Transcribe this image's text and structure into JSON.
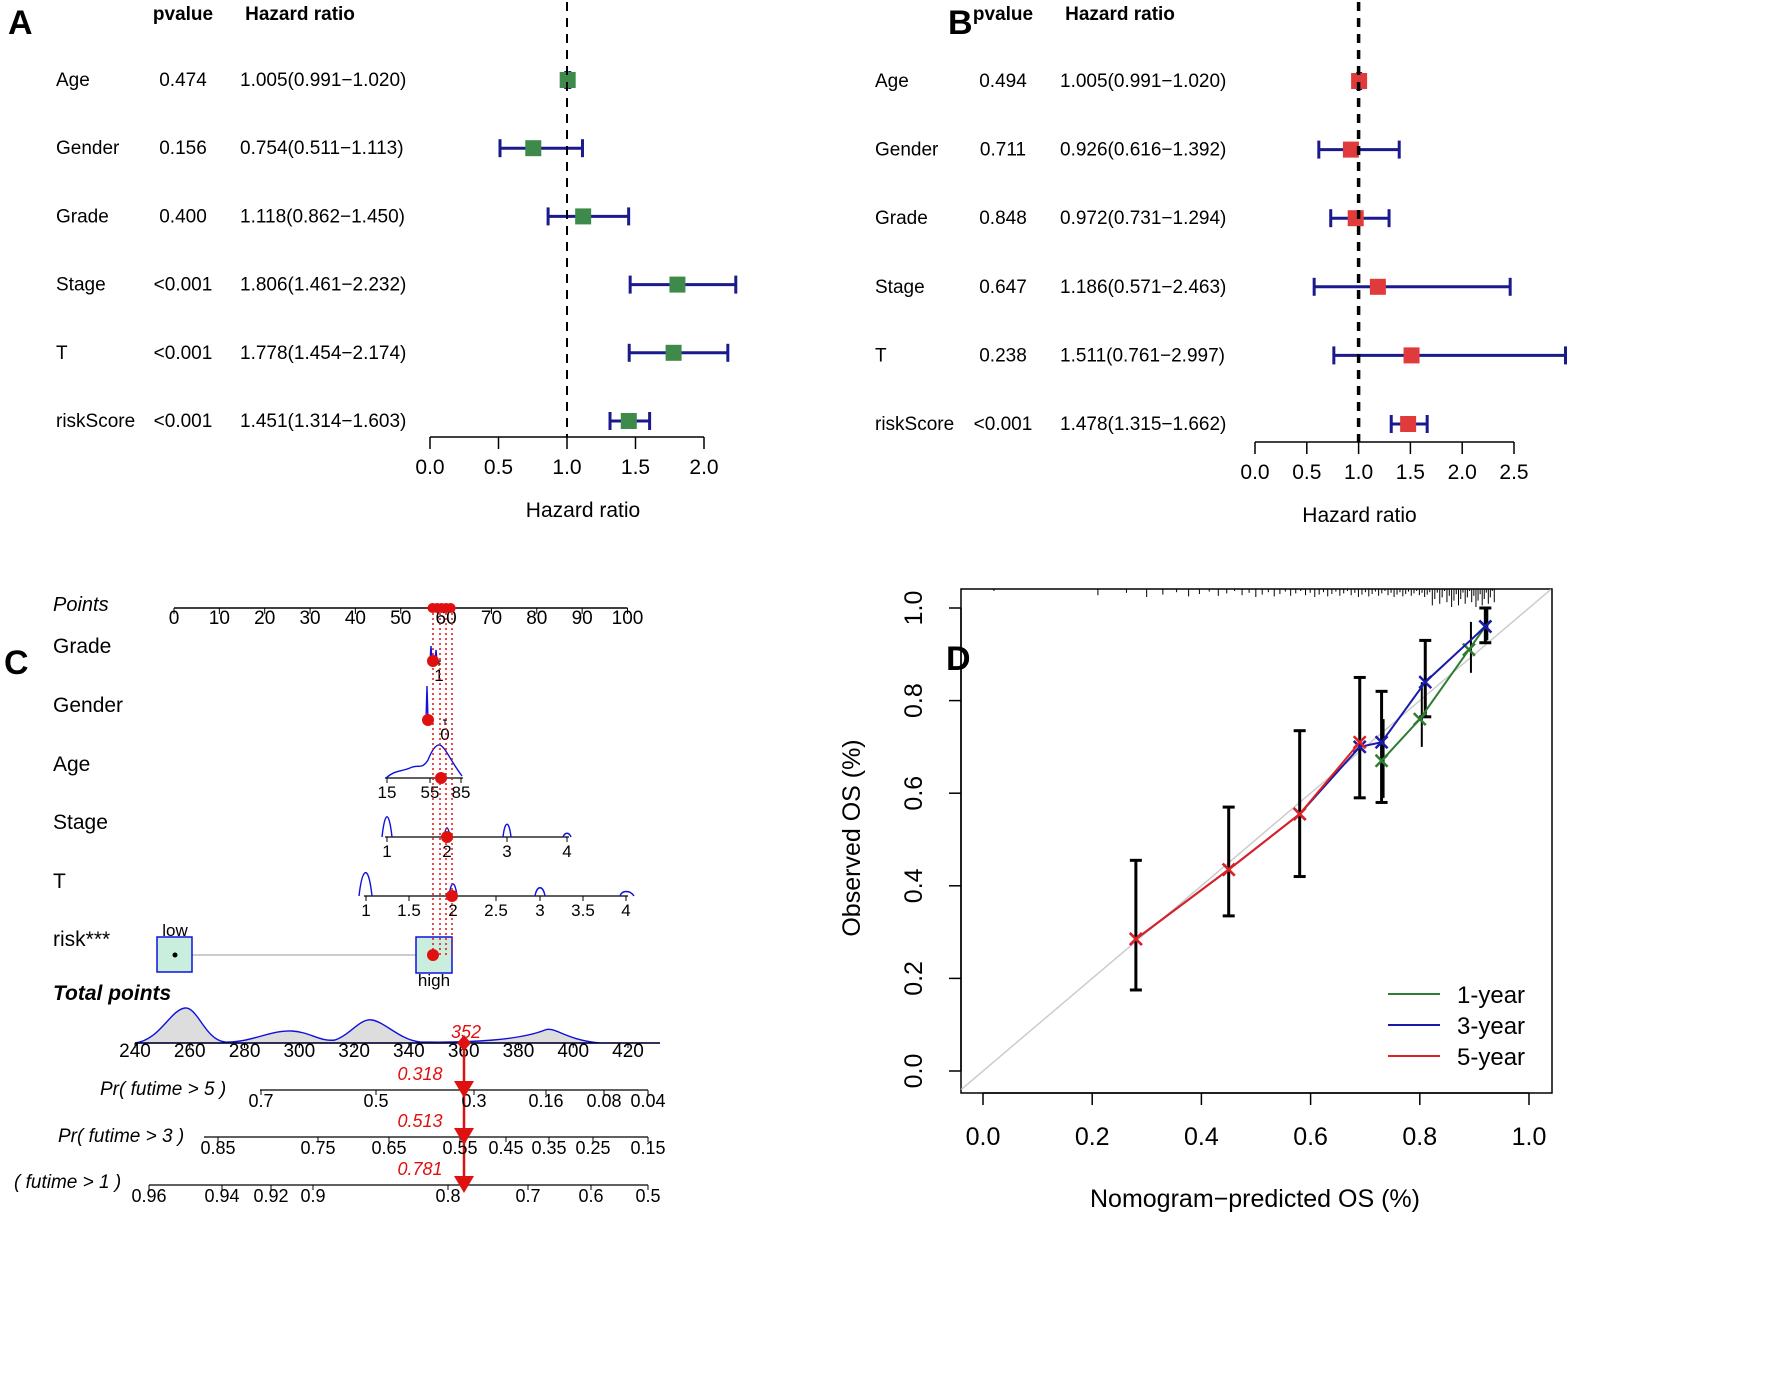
{
  "chart_data": [
    {
      "panel": "A",
      "type": "forest",
      "column_headers": {
        "pvalue": "pvalue",
        "hr": "Hazard ratio"
      },
      "xlabel": "Hazard ratio",
      "xlim": [
        0,
        2.0
      ],
      "ticks": [
        0,
        0.5,
        1,
        1.5,
        2
      ],
      "tick_labels": [
        "0.0",
        "0.5",
        "1.0",
        "1.5",
        "2.0"
      ],
      "reference_line": 1,
      "colors": {
        "point": "#3e8a4a",
        "ci": "#1a1a8c"
      },
      "rows": [
        {
          "label": "Age",
          "pvalue": "0.474",
          "hr_text": "1.005(0.991−1.020)",
          "hr": 1.005,
          "lo": 0.991,
          "hi": 1.02
        },
        {
          "label": "Gender",
          "pvalue": "0.156",
          "hr_text": "0.754(0.511−1.113)",
          "hr": 0.754,
          "lo": 0.511,
          "hi": 1.113
        },
        {
          "label": "Grade",
          "pvalue": "0.400",
          "hr_text": "1.118(0.862−1.450)",
          "hr": 1.118,
          "lo": 0.862,
          "hi": 1.45
        },
        {
          "label": "Stage",
          "pvalue": "<0.001",
          "hr_text": "1.806(1.461−2.232)",
          "hr": 1.806,
          "lo": 1.461,
          "hi": 2.232
        },
        {
          "label": "T",
          "pvalue": "<0.001",
          "hr_text": "1.778(1.454−2.174)",
          "hr": 1.778,
          "lo": 1.454,
          "hi": 2.174
        },
        {
          "label": "riskScore",
          "pvalue": "<0.001",
          "hr_text": "1.451(1.314−1.603)",
          "hr": 1.451,
          "lo": 1.314,
          "hi": 1.603
        }
      ]
    },
    {
      "panel": "B",
      "type": "forest",
      "column_headers": {
        "pvalue": "pvalue",
        "hr": "Hazard ratio"
      },
      "xlabel": "Hazard ratio",
      "xlim": [
        0,
        2.5
      ],
      "ticks": [
        0,
        0.5,
        1,
        1.5,
        2,
        2.5
      ],
      "tick_labels": [
        "0.0",
        "0.5",
        "1.0",
        "1.5",
        "2.0",
        "2.5"
      ],
      "reference_line": 1,
      "colors": {
        "point": "#e03a3a",
        "ci": "#1a1a8c"
      },
      "rows": [
        {
          "label": "Age",
          "pvalue": "0.494",
          "hr_text": "1.005(0.991−1.020)",
          "hr": 1.005,
          "lo": 0.991,
          "hi": 1.02
        },
        {
          "label": "Gender",
          "pvalue": "0.711",
          "hr_text": "0.926(0.616−1.392)",
          "hr": 0.926,
          "lo": 0.616,
          "hi": 1.392
        },
        {
          "label": "Grade",
          "pvalue": "0.848",
          "hr_text": "0.972(0.731−1.294)",
          "hr": 0.972,
          "lo": 0.731,
          "hi": 1.294
        },
        {
          "label": "Stage",
          "pvalue": "0.647",
          "hr_text": "1.186(0.571−2.463)",
          "hr": 1.186,
          "lo": 0.571,
          "hi": 2.463
        },
        {
          "label": "T",
          "pvalue": "0.238",
          "hr_text": "1.511(0.761−2.997)",
          "hr": 1.511,
          "lo": 0.761,
          "hi": 2.997
        },
        {
          "label": "riskScore",
          "pvalue": "<0.001",
          "hr_text": "1.478(1.315−1.662)",
          "hr": 1.478,
          "lo": 1.315,
          "hi": 1.662
        }
      ]
    },
    {
      "panel": "C",
      "type": "nomogram",
      "colors": {
        "point": "#e01010",
        "density": "#1010dd",
        "selected": "#e01010"
      },
      "points_axis": {
        "label": "Points",
        "ticks": [
          "0",
          "10",
          "20",
          "30",
          "40",
          "50",
          "60",
          "70",
          "80",
          "90",
          "100"
        ]
      },
      "variables": [
        {
          "label": "Grade",
          "ticks": [
            "1"
          ],
          "selected_points": 57
        },
        {
          "label": "Gender",
          "ticks": [
            "0"
          ],
          "selected_points": 56
        },
        {
          "label": "Age",
          "ticks": [
            "15",
            "55",
            "85"
          ],
          "selected_points": 59
        },
        {
          "label": "Stage",
          "ticks": [
            "1",
            "2",
            "3",
            "4"
          ],
          "selected_points": 60
        },
        {
          "label": "T",
          "ticks": [
            "1",
            "1.5",
            "2",
            "2.5",
            "3",
            "3.5",
            "4"
          ],
          "selected_points": 61
        },
        {
          "label": "risk***",
          "ticks": [
            "low",
            "high"
          ],
          "selected_points": 57
        }
      ],
      "total_points": {
        "label": "Total points",
        "ticks": [
          "240",
          "260",
          "280",
          "300",
          "320",
          "340",
          "360",
          "380",
          "400",
          "420"
        ],
        "value": "352"
      },
      "probability_axes": [
        {
          "label": "Pr( futime > 5 )",
          "ticks": [
            "0.7",
            "0.5",
            "0.3",
            "0.16",
            "0.08",
            "0.04"
          ],
          "value": "0.318"
        },
        {
          "label": "Pr( futime > 3 )",
          "ticks": [
            "0.85",
            "0.75",
            "0.65",
            "0.55",
            "0.45",
            "0.35",
            "0.25",
            "0.15"
          ],
          "value": "0.513"
        },
        {
          "label": "( futime > 1 )",
          "ticks": [
            "0.96",
            "0.94",
            "0.92",
            "0.9",
            "0.8",
            "0.7",
            "0.6",
            "0.5"
          ],
          "value": "0.781"
        }
      ]
    },
    {
      "panel": "D",
      "type": "line",
      "xlabel": "Nomogram−predicted OS (%)",
      "ylabel": "Observed OS (%)",
      "xlim": [
        0,
        1
      ],
      "ylim": [
        0,
        1
      ],
      "ticks": [
        0,
        0.2,
        0.4,
        0.6,
        0.8,
        1
      ],
      "tick_labels": [
        "0.0",
        "0.2",
        "0.4",
        "0.6",
        "0.8",
        "1.0"
      ],
      "legend_position": "bottom-right",
      "series": [
        {
          "name": "1-year",
          "color": "#2e7d32",
          "x": [
            0.73,
            0.8,
            0.89,
            0.92
          ],
          "y": [
            0.67,
            0.76,
            0.91,
            0.96
          ],
          "lo": [
            0.59,
            0.7,
            0.86,
            0.93
          ],
          "hi": [
            0.76,
            0.84,
            0.97,
            1.0
          ]
        },
        {
          "name": "3-year",
          "color": "#1a1aaa",
          "x": [
            0.28,
            0.45,
            0.58,
            0.69,
            0.73,
            0.81,
            0.92
          ],
          "y": [
            0.285,
            0.435,
            0.555,
            0.7,
            0.71,
            0.84,
            0.96
          ],
          "lo": [
            0.175,
            0.335,
            0.42,
            0.59,
            0.58,
            0.765,
            0.925
          ],
          "hi": [
            0.455,
            0.57,
            0.735,
            0.85,
            0.82,
            0.93,
            1.0
          ]
        },
        {
          "name": "5-year",
          "color": "#e02020",
          "x": [
            0.28,
            0.45,
            0.58,
            0.69
          ],
          "y": [
            0.285,
            0.435,
            0.555,
            0.71
          ],
          "lo": [
            0.175,
            0.335,
            0.42,
            0.59
          ],
          "hi": [
            0.455,
            0.57,
            0.735,
            0.85
          ]
        }
      ]
    }
  ],
  "panel_labels": [
    "A",
    "B",
    "C",
    "D"
  ]
}
